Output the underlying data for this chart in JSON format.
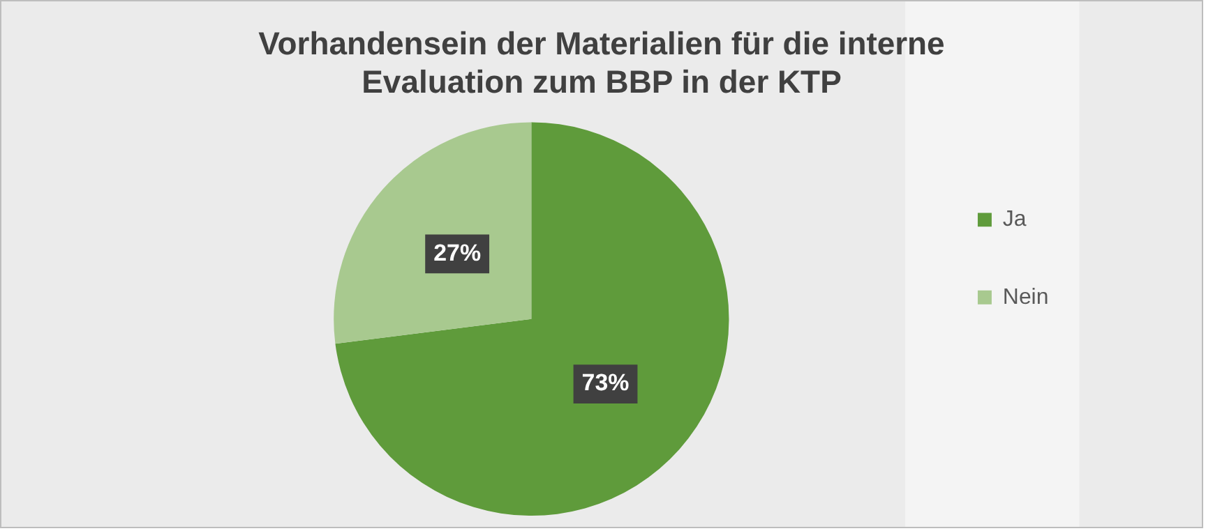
{
  "chart_data": {
    "type": "pie",
    "title": [
      "Vorhandensein der Materialien für die interne",
      "Evaluation zum BBP in der KTP"
    ],
    "categories": [
      "Ja",
      "Nein"
    ],
    "values": [
      73,
      27
    ],
    "colors": [
      "#5f9b3b",
      "#a8c98f"
    ],
    "value_labels": [
      "73%",
      "27%"
    ],
    "legend": "right"
  }
}
